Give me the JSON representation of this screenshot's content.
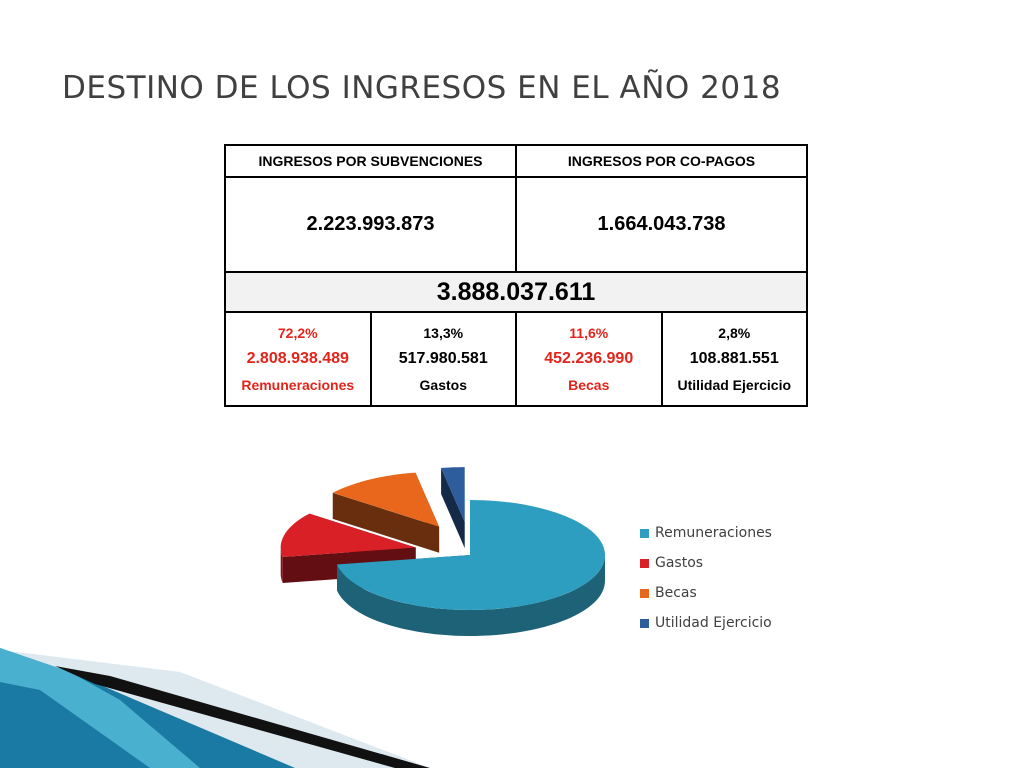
{
  "slide": {
    "title": "DESTINO DE LOS INGRESOS EN EL AÑO 2018"
  },
  "table": {
    "headers": [
      "INGRESOS POR SUBVENCIONES",
      "INGRESOS POR CO-PAGOS"
    ],
    "amounts": [
      "2.223.993.873",
      "1.664.043.738"
    ],
    "total": "3.888.037.611",
    "items": [
      {
        "percent": "72,2%",
        "amount": "2.808.938.489",
        "label": "Remuneraciones",
        "highlight": true
      },
      {
        "percent": "13,3%",
        "amount": "517.980.581",
        "label": "Gastos",
        "highlight": false
      },
      {
        "percent": "11,6%",
        "amount": "452.236.990",
        "label": "Becas",
        "highlight": true
      },
      {
        "percent": "2,8%",
        "amount": "108.881.551",
        "label": "Utilidad Ejercicio",
        "highlight": false
      }
    ],
    "highlight_color": "#e3241b"
  },
  "chart_data": {
    "type": "pie",
    "style": "3d-exploded",
    "categories": [
      "Remuneraciones",
      "Gastos",
      "Becas",
      "Utilidad Ejercicio"
    ],
    "values": [
      2808938489,
      517980581,
      452236990,
      108881551
    ],
    "percentages": [
      72.2,
      13.3,
      11.6,
      2.8
    ],
    "colors": [
      "#2e9ec0",
      "#d92027",
      "#e8671c",
      "#2e5d9e"
    ],
    "legend_position": "right"
  },
  "colors": {
    "text": "#404040",
    "accent_red": "#e3241b"
  }
}
